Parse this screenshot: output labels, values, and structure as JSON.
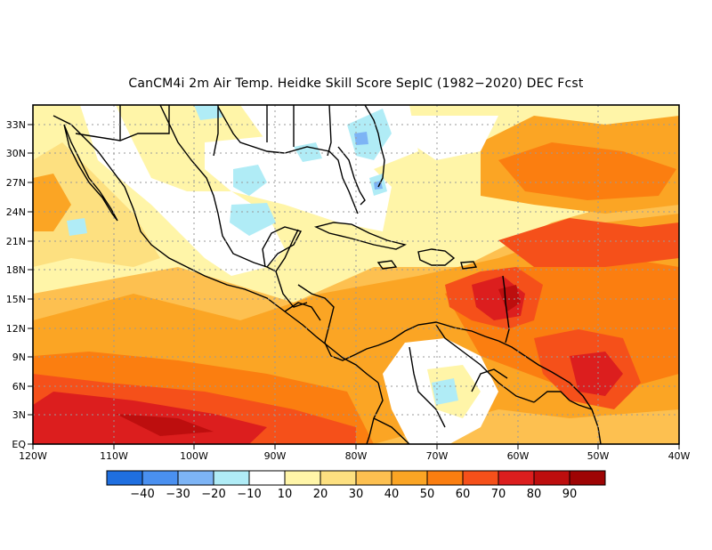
{
  "title": "CanCM4i  2m Air Temp. Heidke Skill Score SepIC (1982−2020) DEC Fcst",
  "lat_labels": [
    "EQ",
    "3N",
    "6N",
    "9N",
    "12N",
    "15N",
    "18N",
    "21N",
    "24N",
    "27N",
    "30N",
    "33N"
  ],
  "lon_labels": [
    "120W",
    "110W",
    "100W",
    "90W",
    "80W",
    "70W",
    "60W",
    "50W",
    "40W"
  ],
  "colorbar": {
    "colors": [
      "#1f6fe0",
      "#4a90f0",
      "#7db4f5",
      "#b0ecf6",
      "#ffffff",
      "#fff5a8",
      "#fde080",
      "#fdc050",
      "#fba524",
      "#fb7e10",
      "#f5501a",
      "#dc1e1e",
      "#bd0e0e",
      "#9e0404"
    ],
    "labels": [
      "−40",
      "−30",
      "−20",
      "−10",
      "10",
      "20",
      "30",
      "40",
      "50",
      "60",
      "70",
      "80",
      "90"
    ]
  },
  "field_colors": {
    "land_white": "#ffffff",
    "light_yellow": "#fff5a8",
    "yellow": "#fde080",
    "orange_light": "#fdc050",
    "orange": "#fba524",
    "orange_dark": "#fb7e10",
    "red_orange": "#f5501a",
    "red": "#dc1e1e",
    "dark_red": "#bd0e0e",
    "cyan": "#b0ecf6",
    "blue": "#7db4f5"
  }
}
